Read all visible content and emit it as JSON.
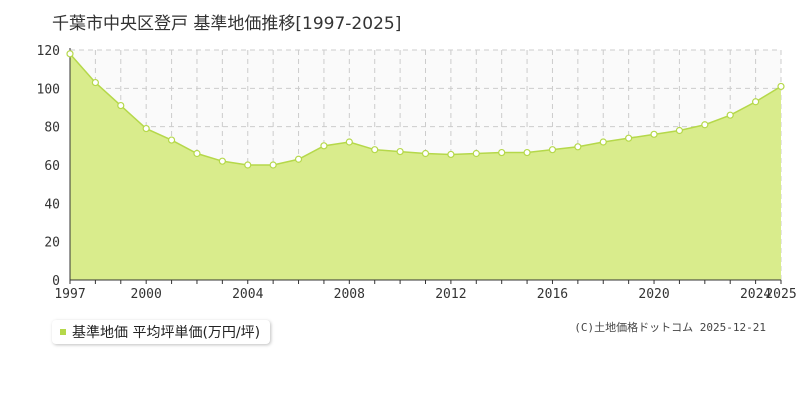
{
  "chart_data": {
    "type": "area",
    "title": "千葉市中央区登戸 基準地価推移[1997-2025]",
    "x": [
      1997,
      1998,
      1999,
      2000,
      2001,
      2002,
      2003,
      2004,
      2005,
      2006,
      2007,
      2008,
      2009,
      2010,
      2011,
      2012,
      2013,
      2014,
      2015,
      2016,
      2017,
      2018,
      2019,
      2020,
      2021,
      2022,
      2023,
      2024,
      2025
    ],
    "series": [
      {
        "name": "基準地価 平均坪単価(万円/坪)",
        "values": [
          118,
          103,
          91,
          79,
          73,
          66,
          62,
          60,
          60,
          63,
          70,
          72,
          68,
          67,
          66,
          65.5,
          66,
          66.5,
          66.5,
          68,
          69.5,
          72,
          74,
          76,
          78,
          81,
          86,
          93,
          101
        ]
      }
    ],
    "xlim": [
      1997,
      2025
    ],
    "ylim": [
      0,
      120
    ],
    "x_ticks": [
      "1997",
      "2000",
      "2004",
      "2008",
      "2012",
      "2016",
      "2020",
      "2024",
      "2025"
    ],
    "y_ticks": [
      "0",
      "20",
      "40",
      "60",
      "80",
      "100",
      "120"
    ],
    "grid": true,
    "legend": "bottom-left",
    "colors": {
      "fill": "#d9ec8c",
      "line": "#b5d84a",
      "marker_fill": "#ffffff",
      "legend": "#b5d84a"
    }
  },
  "credit": "(C)土地価格ドットコム 2025-12-21"
}
